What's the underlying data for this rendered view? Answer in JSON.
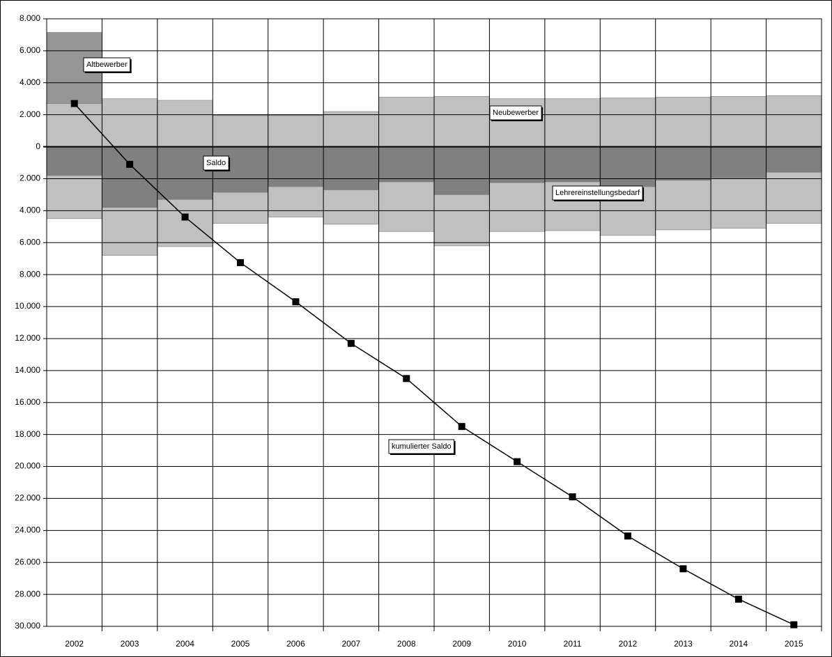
{
  "chart_data": {
    "type": "bar",
    "stacked": true,
    "grid": true,
    "categories": [
      "2002",
      "2003",
      "2004",
      "2005",
      "2006",
      "2007",
      "2008",
      "2009",
      "2010",
      "2011",
      "2012",
      "2013",
      "2014",
      "2015"
    ],
    "series": [
      {
        "name": "Neubewerber",
        "color": "#c0c0c0",
        "values": [
          2700,
          3000,
          2900,
          1950,
          1950,
          2200,
          3100,
          3150,
          3000,
          3000,
          3050,
          3100,
          3150,
          3200
        ]
      },
      {
        "name": "Altbewerber",
        "color": "#969696",
        "values": [
          4450,
          0,
          0,
          50,
          50,
          0,
          0,
          0,
          0,
          0,
          0,
          0,
          0,
          0
        ]
      },
      {
        "name": "Saldo",
        "color": "#808080",
        "values": [
          -1800,
          -3800,
          -3300,
          -2850,
          -2500,
          -2700,
          -2200,
          -3000,
          -2250,
          -2200,
          -2500,
          -2100,
          -1950,
          -1600
        ]
      },
      {
        "name": "Lehrereinstellungsbedarf",
        "color": "#c0c0c0",
        "values": [
          -2700,
          -3000,
          -2950,
          -1950,
          -1900,
          -2150,
          -3100,
          -3200,
          -3050,
          -3050,
          -3050,
          -3100,
          -3150,
          -3200
        ]
      },
      {
        "name": "kumulierter Saldo",
        "type": "line",
        "color": "#000000",
        "values": [
          2700,
          -1100,
          -4400,
          -7250,
          -9700,
          -12300,
          -14500,
          -17500,
          -19700,
          -21900,
          -24350,
          -26400,
          -28300,
          -29900
        ]
      }
    ],
    "ylim": [
      -30000,
      8000
    ],
    "yticks": [
      {
        "value": 8000,
        "label": "8.000"
      },
      {
        "value": 6000,
        "label": "6.000"
      },
      {
        "value": 4000,
        "label": "4.000"
      },
      {
        "value": 2000,
        "label": "2.000"
      },
      0,
      {
        "value": -2000,
        "label": "2.000"
      },
      {
        "value": -4000,
        "label": "4.000"
      },
      {
        "value": -6000,
        "label": "6.000"
      },
      {
        "value": -8000,
        "label": "8.000"
      },
      {
        "value": -10000,
        "label": "10.000"
      },
      {
        "value": -12000,
        "label": "12.000"
      },
      {
        "value": -14000,
        "label": "14.000"
      },
      {
        "value": -16000,
        "label": "16.000"
      },
      {
        "value": -18000,
        "label": "18.000"
      },
      {
        "value": -20000,
        "label": "20.000"
      },
      {
        "value": -22000,
        "label": "22.000"
      },
      {
        "value": -24000,
        "label": "24.000"
      },
      {
        "value": -26000,
        "label": "26.000"
      },
      {
        "value": -28000,
        "label": "28.000"
      },
      {
        "value": -30000,
        "label": "30.000"
      }
    ]
  }
}
